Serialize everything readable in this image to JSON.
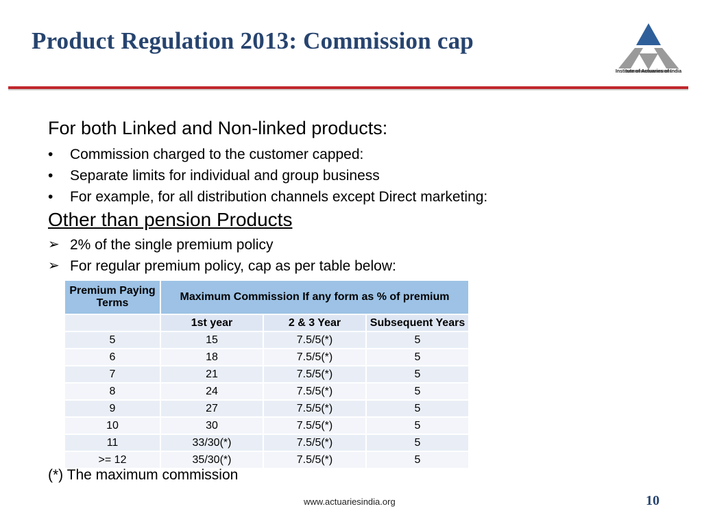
{
  "slide": {
    "title": "Product Regulation 2013: Commission cap",
    "logo_caption": "Institute of Actuaries of India",
    "brand_colors": {
      "title": "#27446f",
      "rule": "#c0272d",
      "logo": "#2f5f9a"
    }
  },
  "body": {
    "lead": "For both Linked and Non-linked products:",
    "bullets": [
      "Commission charged to the customer capped:",
      "Separate limits for individual and group business",
      "For example, for all distribution channels except Direct marketing:"
    ],
    "subheading": "Other than pension Products",
    "arrow_items": [
      "2% of the single premium policy",
      "For regular premium policy, cap as per table below:"
    ]
  },
  "table": {
    "col1_header": "Premium Paying Terms",
    "group_header": "Maximum Commission If any form as % of premium",
    "sub_headers": [
      "1st year",
      "2 & 3 Year",
      "Subsequent Years"
    ],
    "rows": [
      [
        "5",
        "15",
        "7.5/5(*)",
        "5"
      ],
      [
        "6",
        "18",
        "7.5/5(*)",
        "5"
      ],
      [
        "7",
        "21",
        "7.5/5(*)",
        "5"
      ],
      [
        "8",
        "24",
        "7.5/5(*)",
        "5"
      ],
      [
        "9",
        "27",
        "7.5/5(*)",
        "5"
      ],
      [
        "10",
        "30",
        "7.5/5(*)",
        "5"
      ],
      [
        "11",
        "33/30(*)",
        "7.5/5(*)",
        "5"
      ],
      [
        ">= 12",
        "35/30(*)",
        "7.5/5(*)",
        "5"
      ]
    ]
  },
  "footnote": "(*) The maximum commission",
  "footer": {
    "url": "www.actuariesindia.org",
    "page_number": "10"
  }
}
